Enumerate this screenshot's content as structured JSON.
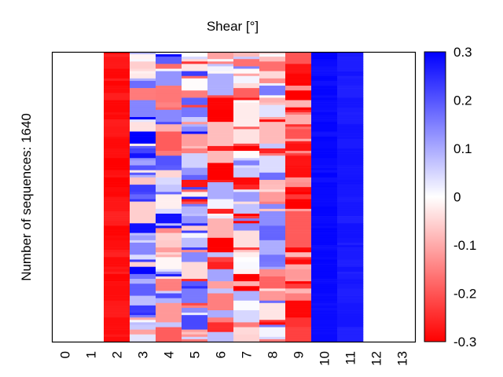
{
  "chart_data": {
    "type": "heatmap",
    "title": "Shear [°]",
    "xlabel": "",
    "ylabel": "Number of sequences: 1640",
    "n_rows": 1640,
    "categories": [
      "0",
      "1",
      "2",
      "3",
      "4",
      "5",
      "6",
      "7",
      "8",
      "9",
      "10",
      "11",
      "12",
      "13"
    ],
    "colorbar": {
      "range": [
        -0.3,
        0.3
      ],
      "ticks": [
        "0.3",
        "0.2",
        "0.1",
        "0",
        "-0.1",
        "-0.2",
        "-0.3"
      ],
      "tick_values": [
        0.3,
        0.2,
        0.1,
        0,
        -0.1,
        -0.2,
        -0.3
      ],
      "colors": {
        "low": "#ff0000",
        "mid": "#ffffff",
        "high": "#0000ff"
      }
    },
    "columns": [
      {
        "index": 0,
        "mean": null,
        "spread": 0
      },
      {
        "index": 1,
        "mean": null,
        "spread": 0
      },
      {
        "index": 2,
        "mean": -0.28,
        "spread": 0.02
      },
      {
        "index": 3,
        "mean": 0.08,
        "spread": 0.25
      },
      {
        "index": 4,
        "mean": 0.05,
        "spread": 0.25
      },
      {
        "index": 5,
        "mean": 0.0,
        "spread": 0.28
      },
      {
        "index": 6,
        "mean": -0.1,
        "spread": 0.25
      },
      {
        "index": 7,
        "mean": -0.08,
        "spread": 0.25
      },
      {
        "index": 8,
        "mean": -0.05,
        "spread": 0.25
      },
      {
        "index": 9,
        "mean": -0.2,
        "spread": 0.12
      },
      {
        "index": 10,
        "mean": 0.29,
        "spread": 0.01
      },
      {
        "index": 11,
        "mean": 0.27,
        "spread": 0.01
      },
      {
        "index": 12,
        "mean": null,
        "spread": 0
      },
      {
        "index": 13,
        "mean": null,
        "spread": 0
      }
    ]
  }
}
